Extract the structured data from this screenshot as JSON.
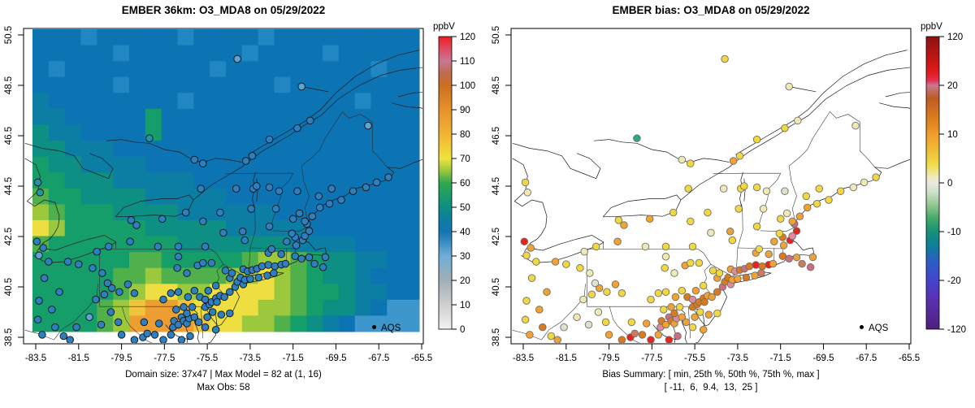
{
  "left_panel": {
    "title": "EMBER 36km: O3_MDA8 on 05/29/2022",
    "caption_line1": "Domain size: 37x47 | Max Model = 82 at (1, 16)",
    "caption_line2": "Max Obs: 58",
    "legend_label": "AQS",
    "colorbar": {
      "unit": "ppbV",
      "tick_labels": [
        "120",
        "110",
        "100",
        "90",
        "80",
        "70",
        "60",
        "50",
        "40",
        "30",
        "20",
        "10",
        "0"
      ]
    }
  },
  "right_panel": {
    "title": "EMBER bias: O3_MDA8 on 05/29/2022",
    "caption_line1": "Bias Summary: [ min, 25th %, 50th %, 75th %, max ]",
    "caption_line2": "[ -11,  6,  9.4,  13,  25 ]",
    "legend_label": "AQS",
    "colorbar": {
      "unit": "ppbV",
      "tick_labels": [
        "120",
        "20",
        "10",
        "0",
        "-10",
        "-20",
        "-120"
      ]
    }
  },
  "axes": {
    "x_ticks": [
      -83.5,
      -81.5,
      -79.5,
      -77.5,
      -75.5,
      -73.5,
      -71.5,
      -69.5,
      -67.5,
      -65.5
    ],
    "x_tick_labels": [
      "-83.5",
      "-81.5",
      "-79.5",
      "-77.5",
      "-75.5",
      "-73.5",
      "-71.5",
      "-69.5",
      "-67.5",
      "-65.5"
    ],
    "y_ticks": [
      50.5,
      48.5,
      46.5,
      44.5,
      42.5,
      40.5,
      38.5
    ],
    "y_tick_labels": [
      "50.5",
      "48.5",
      "46.5",
      "44.5",
      "42.5",
      "40.5",
      "38.5"
    ]
  },
  "chart_data": [
    {
      "type": "heatmap",
      "title": "EMBER 36km: O3_MDA8 on 05/29/2022",
      "unit": "ppbV",
      "colorbar_range": [
        0,
        120
      ],
      "colorbar_tick_step": 10,
      "domain_size": "37x47",
      "max_model": 82,
      "max_model_at": "(1, 16)",
      "max_obs": 58,
      "legend": "AQS",
      "xlim": [
        -84.0,
        -65.0
      ],
      "ylim": [
        38.24,
        50.76
      ],
      "raster_palette": {
        "A": "#0d74b4",
        "B": "#2187c2",
        "C": "#0c7ea4",
        "D": "#0d8f84",
        "E": "#169e6a",
        "F": "#4fb04c",
        "G": "#9cc83e",
        "H": "#eede42",
        "I": "#f1c43c",
        "J": "#ec9e32",
        "K": "#3d97cc"
      },
      "raster_rows": [
        "AAABAAAAABAAAABAAAAAAAAA",
        "AAAAABAAAAAAABAAAABAAAAA",
        "ABAAAAAAAAABAAAAAAAAABAA",
        "AAAAABAAAAAAAAABAAAAAAAA",
        "CAAAAAAAABAAAAAAAAAABAAA",
        "CCAAAAAEAAAAAAAAAAAAAAAA",
        "DCCAAAAEAAAAAAAAAAAAAAAA",
        "DDCCCAAAAAAAAAAAAAAAAAAA",
        "EDDCCCCAAAAAAAAAAAAAAAAA",
        "EEDDDCCCCCAAAAAAAAAAAAAA",
        "FEEDDDDCCCCCAAAAAAAAAAAA",
        "GFEEEDDDDCCCCCCAAAAAAAAA",
        "HGEEEEEDDDDDCCCCCAAAAAAA",
        "FEEEEEEEEDDDDDDDCCCCAAAA",
        "EEEEEEFFEEEEEFGGFEDDCCAA",
        "EEEEEFFGFFFFGGHGFEDDCAAA",
        "EEEEEFGHHGGHHHHGFEEDCCAA",
        "EEEEFGIJJIHHHHGGFEDDCAKK",
        "EEEEFGJJJJIHHGGFEDCAKKKK"
      ],
      "obs_marker_colors": [
        "#2d7fc0",
        "#5aa4d6",
        "#2094a8"
      ],
      "colorbar_gradient": [
        [
          0,
          "#ee1c24"
        ],
        [
          0.04,
          "#e0485e"
        ],
        [
          0.083,
          "#c87894"
        ],
        [
          0.125,
          "#c06a50"
        ],
        [
          0.167,
          "#cc6e20"
        ],
        [
          0.25,
          "#e8912c"
        ],
        [
          0.333,
          "#f2b434"
        ],
        [
          0.417,
          "#f0e23c"
        ],
        [
          0.458,
          "#9cc83e"
        ],
        [
          0.5,
          "#2fa84f"
        ],
        [
          0.583,
          "#0d8f84"
        ],
        [
          0.625,
          "#0c7ea4"
        ],
        [
          0.667,
          "#1474b4"
        ],
        [
          0.75,
          "#6faed8"
        ],
        [
          0.833,
          "#a2aeb6"
        ],
        [
          0.917,
          "#cfcfcf"
        ],
        [
          1,
          "#f2f2f2"
        ]
      ]
    },
    {
      "type": "scatter",
      "title": "EMBER bias: O3_MDA8 on 05/29/2022",
      "unit": "ppbV",
      "colorbar_range": [
        -120,
        120
      ],
      "colorbar_tick_values": [
        120,
        20,
        10,
        0,
        -10,
        -20,
        -120
      ],
      "bias_summary": {
        "min": -11,
        "p25": 6,
        "p50": 9.4,
        "p75": 13,
        "max": 25
      },
      "legend": "AQS",
      "xlim": [
        -84.0,
        -65.0
      ],
      "ylim": [
        38.24,
        50.76
      ],
      "dot_palette": {
        "y": "#f2d840",
        "Y": "#efe9b4",
        "c": "#dfe0cd",
        "o": "#f0a232",
        "O": "#d97a1e",
        "r": "#e8231c",
        "p": "#e18a9c",
        "q": "#cf6d7e",
        "m": "#cd7a5e",
        "g": "#30a878"
      },
      "colorbar_gradient": [
        [
          0,
          "#8c1212"
        ],
        [
          0.06,
          "#b81414"
        ],
        [
          0.12,
          "#e01a1a"
        ],
        [
          0.15,
          "#e43050"
        ],
        [
          0.167,
          "#c87890"
        ],
        [
          0.21,
          "#c05a22"
        ],
        [
          0.28,
          "#da7d1e"
        ],
        [
          0.333,
          "#f09c2a"
        ],
        [
          0.4,
          "#f0c438"
        ],
        [
          0.44,
          "#eede4e"
        ],
        [
          0.48,
          "#eeeabe"
        ],
        [
          0.5,
          "#e8eae0"
        ],
        [
          0.53,
          "#cfe2cc"
        ],
        [
          0.58,
          "#8cc48c"
        ],
        [
          0.62,
          "#42aa6a"
        ],
        [
          0.667,
          "#169078"
        ],
        [
          0.72,
          "#0f7c9c"
        ],
        [
          0.77,
          "#2b5ec4"
        ],
        [
          0.833,
          "#4444cc"
        ],
        [
          0.9,
          "#5a30b0"
        ],
        [
          1,
          "#50207c"
        ]
      ]
    }
  ],
  "stations": [
    [
      -83.45,
      42.3,
      0,
      "r"
    ],
    [
      -83.15,
      42.05,
      0,
      "o"
    ],
    [
      -83.35,
      41.75,
      1,
      "y"
    ],
    [
      -82.9,
      41.5,
      0,
      "y"
    ],
    [
      -82.0,
      41.5,
      0,
      "o"
    ],
    [
      -81.5,
      41.4,
      0,
      "y"
    ],
    [
      -80.85,
      41.25,
      0,
      "y"
    ],
    [
      -80.65,
      41.9,
      0,
      "Y"
    ],
    [
      -83.1,
      40.85,
      0,
      "y"
    ],
    [
      -82.4,
      40.3,
      0,
      "o"
    ],
    [
      -83.35,
      39.95,
      0,
      "y"
    ],
    [
      -82.75,
      39.6,
      0,
      "o"
    ],
    [
      -83.4,
      39.2,
      0,
      "y"
    ],
    [
      -82.6,
      38.9,
      0,
      "O"
    ],
    [
      -83.2,
      38.6,
      0,
      "o"
    ],
    [
      -82.2,
      38.55,
      0,
      "y"
    ],
    [
      -83.4,
      44.65,
      2,
      "y"
    ],
    [
      -83.3,
      44.25,
      2,
      "Y"
    ],
    [
      -81.6,
      38.9,
      0,
      "c"
    ],
    [
      -81.0,
      39.3,
      1,
      "Y"
    ],
    [
      -80.45,
      39.0,
      0,
      "c"
    ],
    [
      -80.0,
      39.5,
      0,
      "Y"
    ],
    [
      -79.65,
      39.1,
      0,
      "y"
    ],
    [
      -80.7,
      40.0,
      0,
      "Y"
    ],
    [
      -80.3,
      40.2,
      0,
      "y"
    ],
    [
      -79.95,
      40.45,
      0,
      "o"
    ],
    [
      -79.6,
      40.3,
      0,
      "y"
    ],
    [
      -80.15,
      40.65,
      0,
      "c"
    ],
    [
      -80.4,
      41.05,
      0,
      "Y"
    ],
    [
      -79.2,
      40.6,
      0,
      "o"
    ],
    [
      -78.9,
      40.25,
      0,
      "y"
    ],
    [
      -80.1,
      42.1,
      0,
      "y"
    ],
    [
      -79.1,
      42.3,
      0,
      "o"
    ],
    [
      -78.8,
      42.95,
      0,
      "o"
    ],
    [
      -79.05,
      43.15,
      0,
      "y"
    ],
    [
      -77.6,
      43.2,
      0,
      "o"
    ],
    [
      -76.5,
      43.45,
      0,
      "y"
    ],
    [
      -75.7,
      43.1,
      0,
      "y"
    ],
    [
      -77.8,
      42.1,
      0,
      "Y"
    ],
    [
      -76.85,
      42.1,
      0,
      "y"
    ],
    [
      -75.6,
      42.1,
      0,
      "y"
    ],
    [
      -74.75,
      42.65,
      0,
      "Y"
    ],
    [
      -73.85,
      42.7,
      0,
      "o"
    ],
    [
      -73.75,
      42.35,
      0,
      "y"
    ],
    [
      -74.9,
      43.45,
      0,
      "y"
    ],
    [
      -73.45,
      43.6,
      0,
      "y"
    ],
    [
      -73.35,
      44.4,
      0,
      "y"
    ],
    [
      -74.15,
      44.4,
      0,
      "Y"
    ],
    [
      -75.8,
      44.4,
      0,
      "y"
    ],
    [
      -78.2,
      46.4,
      2,
      "g"
    ],
    [
      -74.1,
      49.55,
      1,
      "y"
    ],
    [
      -75.7,
      45.4,
      0,
      "y"
    ],
    [
      -76.1,
      45.55,
      0,
      "Y"
    ],
    [
      -73.7,
      45.5,
      0,
      "o"
    ],
    [
      -73.4,
      45.7,
      0,
      "y"
    ],
    [
      -72.6,
      46.35,
      0,
      "y"
    ],
    [
      -71.3,
      46.8,
      0,
      "y"
    ],
    [
      -70.7,
      47.1,
      0,
      "Y"
    ],
    [
      -71.1,
      48.45,
      1,
      "Y"
    ],
    [
      -81.9,
      38.4,
      0,
      "o"
    ],
    [
      -79.5,
      38.6,
      0,
      "o"
    ],
    [
      -78.9,
      38.4,
      0,
      "O"
    ],
    [
      -78.5,
      38.5,
      0,
      "r"
    ],
    [
      -78.3,
      38.65,
      0,
      "m"
    ],
    [
      -77.95,
      38.6,
      0,
      "O"
    ],
    [
      -77.55,
      38.4,
      0,
      "r"
    ],
    [
      -77.2,
      38.6,
      0,
      "o"
    ],
    [
      -76.7,
      38.4,
      0,
      "r"
    ],
    [
      -76.3,
      38.55,
      0,
      "q"
    ],
    [
      -78.45,
      39.1,
      0,
      "y"
    ],
    [
      -77.75,
      39.05,
      0,
      "o"
    ],
    [
      -77.1,
      38.9,
      0,
      "p"
    ],
    [
      -77.05,
      39.15,
      0,
      "O"
    ],
    [
      -76.85,
      39.0,
      0,
      "o"
    ],
    [
      -76.7,
      39.3,
      0,
      "q"
    ],
    [
      -76.6,
      39.15,
      0,
      "O"
    ],
    [
      -76.45,
      39.05,
      0,
      "o"
    ],
    [
      -76.35,
      39.25,
      0,
      "p"
    ],
    [
      -76.45,
      39.45,
      0,
      "O"
    ],
    [
      -76.1,
      39.3,
      0,
      "o"
    ],
    [
      -76.95,
      39.6,
      0,
      "y"
    ],
    [
      -76.6,
      39.7,
      0,
      "o"
    ],
    [
      -76.2,
      39.7,
      0,
      "y"
    ],
    [
      -75.9,
      39.1,
      0,
      "o"
    ],
    [
      -75.6,
      38.9,
      0,
      "y"
    ],
    [
      -75.5,
      39.3,
      0,
      "o"
    ],
    [
      -75.6,
      39.7,
      0,
      "O"
    ],
    [
      -75.4,
      39.8,
      0,
      "O"
    ],
    [
      -75.1,
      38.8,
      0,
      "o"
    ],
    [
      -75.25,
      39.5,
      0,
      "y"
    ],
    [
      -76.85,
      40.3,
      0,
      "y"
    ],
    [
      -76.4,
      40.1,
      0,
      "o"
    ],
    [
      -76.1,
      40.35,
      0,
      "y"
    ],
    [
      -75.85,
      40.1,
      0,
      "O"
    ],
    [
      -75.6,
      40.0,
      0,
      "p"
    ],
    [
      -75.3,
      39.9,
      0,
      "O"
    ],
    [
      -75.1,
      40.05,
      0,
      "O"
    ],
    [
      -74.9,
      40.15,
      0,
      "o"
    ],
    [
      -75.45,
      40.35,
      0,
      "o"
    ],
    [
      -75.1,
      40.55,
      0,
      "y"
    ],
    [
      -77.2,
      40.25,
      0,
      "y"
    ],
    [
      -77.55,
      40.0,
      0,
      "y"
    ],
    [
      -76.9,
      41.25,
      0,
      "y"
    ],
    [
      -76.45,
      41.05,
      0,
      "Y"
    ],
    [
      -75.95,
      41.35,
      0,
      "o"
    ],
    [
      -75.7,
      41.45,
      0,
      "y"
    ],
    [
      -76.85,
      41.7,
      0,
      "Y"
    ],
    [
      -75.3,
      41.45,
      0,
      "y"
    ],
    [
      -74.85,
      39.4,
      0,
      "o"
    ],
    [
      -74.45,
      39.45,
      0,
      "y"
    ],
    [
      -75.05,
      39.9,
      0,
      "O"
    ],
    [
      -74.7,
      40.1,
      0,
      "o"
    ],
    [
      -74.45,
      40.3,
      0,
      "O"
    ],
    [
      -74.2,
      40.5,
      0,
      "q"
    ],
    [
      -74.1,
      40.7,
      0,
      "O"
    ],
    [
      -73.95,
      40.87,
      0,
      "O"
    ],
    [
      -74.45,
      40.85,
      0,
      "o"
    ],
    [
      -74.35,
      41.05,
      0,
      "y"
    ],
    [
      -74.65,
      41.15,
      0,
      "y"
    ],
    [
      -73.82,
      40.6,
      0,
      "p"
    ],
    [
      -73.75,
      40.78,
      0,
      "o"
    ],
    [
      -73.5,
      40.82,
      0,
      "o"
    ],
    [
      -73.1,
      40.87,
      0,
      "O"
    ],
    [
      -72.7,
      40.95,
      0,
      "o"
    ],
    [
      -72.4,
      41.05,
      0,
      "m"
    ],
    [
      -73.82,
      41.2,
      0,
      "o"
    ],
    [
      -73.62,
      41.12,
      0,
      "p"
    ],
    [
      -73.4,
      41.17,
      0,
      "O"
    ],
    [
      -73.18,
      41.22,
      0,
      "q"
    ],
    [
      -72.95,
      41.32,
      0,
      "O"
    ],
    [
      -72.65,
      41.37,
      0,
      "r"
    ],
    [
      -72.35,
      41.32,
      0,
      "O"
    ],
    [
      -72.05,
      41.38,
      0,
      "r"
    ],
    [
      -71.85,
      41.42,
      0,
      "o"
    ],
    [
      -72.65,
      41.85,
      0,
      "o"
    ],
    [
      -72.5,
      42.0,
      0,
      "y"
    ],
    [
      -72.05,
      41.8,
      0,
      "o"
    ],
    [
      -71.4,
      41.72,
      0,
      "O"
    ],
    [
      -71.1,
      41.62,
      0,
      "q"
    ],
    [
      -70.75,
      41.67,
      0,
      "o"
    ],
    [
      -70.5,
      41.42,
      0,
      "m"
    ],
    [
      -70.1,
      41.28,
      0,
      "q"
    ],
    [
      -69.99,
      41.68,
      0,
      "o"
    ],
    [
      -71.35,
      42.15,
      0,
      "o"
    ],
    [
      -71.05,
      42.35,
      0,
      "r"
    ],
    [
      -70.95,
      42.52,
      0,
      "p"
    ],
    [
      -71.4,
      42.47,
      0,
      "O"
    ],
    [
      -71.8,
      42.3,
      0,
      "o"
    ],
    [
      -71.55,
      42.62,
      0,
      "y"
    ],
    [
      -70.75,
      42.72,
      0,
      "r"
    ],
    [
      -70.85,
      43.0,
      0,
      "q"
    ],
    [
      -72.6,
      42.9,
      0,
      "y"
    ],
    [
      -72.3,
      43.6,
      0,
      "Y"
    ],
    [
      -71.5,
      43.2,
      0,
      "y"
    ],
    [
      -71.2,
      43.42,
      0,
      "Y"
    ],
    [
      -72.15,
      44.3,
      0,
      "Y"
    ],
    [
      -72.6,
      44.45,
      0,
      "y"
    ],
    [
      -73.2,
      44.5,
      0,
      "y"
    ],
    [
      -71.3,
      44.3,
      0,
      "c"
    ],
    [
      -70.95,
      43.1,
      0,
      "o"
    ],
    [
      -70.6,
      43.3,
      0,
      "o"
    ],
    [
      -70.25,
      43.65,
      0,
      "o"
    ],
    [
      -69.8,
      43.8,
      0,
      "y"
    ],
    [
      -69.25,
      43.95,
      0,
      "y"
    ],
    [
      -68.7,
      44.3,
      0,
      "y"
    ],
    [
      -68.1,
      44.45,
      0,
      "Y"
    ],
    [
      -67.6,
      44.65,
      0,
      "Y"
    ],
    [
      -67.05,
      44.85,
      0,
      "y"
    ],
    [
      -69.7,
      44.4,
      0,
      "y"
    ],
    [
      -70.3,
      44.1,
      0,
      "y"
    ],
    [
      -68.0,
      46.9,
      1,
      "Y"
    ]
  ]
}
